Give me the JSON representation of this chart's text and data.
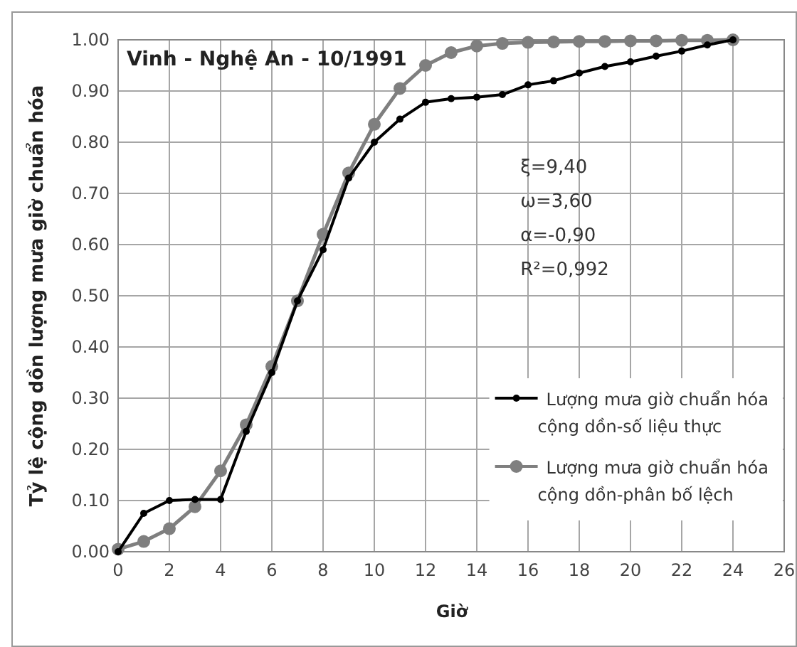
{
  "chart_data": {
    "type": "line",
    "title": "Vinh - Nghệ An - 10/1991",
    "xlabel": "Giờ",
    "ylabel": "Tỷ lệ cộng dồn lượng mưa giờ chuẩn hóa",
    "x": [
      0,
      1,
      2,
      3,
      4,
      5,
      6,
      7,
      8,
      9,
      10,
      11,
      12,
      13,
      14,
      15,
      16,
      17,
      18,
      19,
      20,
      21,
      22,
      23,
      24
    ],
    "series": [
      {
        "name": "Lượng mưa giờ chuẩn hóa cộng dồn-số liệu thực",
        "color": "#000000",
        "values": [
          0,
          0.075,
          0.1,
          0.102,
          0.102,
          0.235,
          0.35,
          0.49,
          0.59,
          0.73,
          0.8,
          0.845,
          0.878,
          0.885,
          0.888,
          0.893,
          0.912,
          0.92,
          0.935,
          0.948,
          0.957,
          0.968,
          0.978,
          0.99,
          1.0
        ]
      },
      {
        "name": "Lượng mưa giờ chuẩn hóa cộng dồn-phân bố lệch",
        "color": "#7f7f7f",
        "values": [
          0.005,
          0.02,
          0.045,
          0.088,
          0.158,
          0.248,
          0.362,
          0.49,
          0.62,
          0.74,
          0.835,
          0.905,
          0.95,
          0.975,
          0.988,
          0.993,
          0.995,
          0.996,
          0.997,
          0.997,
          0.998,
          0.998,
          0.999,
          0.999,
          1.0
        ]
      }
    ],
    "xlim": [
      0,
      26
    ],
    "xticks": [
      0,
      2,
      4,
      6,
      8,
      10,
      12,
      14,
      16,
      18,
      20,
      22,
      24,
      26
    ],
    "ylim": [
      0,
      1
    ],
    "yticks": [
      {
        "value": 0,
        "label": "0.00"
      },
      {
        "value": 0.1,
        "label": "0.10"
      },
      {
        "value": 0.2,
        "label": "0.20"
      },
      {
        "value": 0.3,
        "label": "0.30"
      },
      {
        "value": 0.4,
        "label": "0.40"
      },
      {
        "value": 0.5,
        "label": "0.50"
      },
      {
        "value": 0.6,
        "label": "0.60"
      },
      {
        "value": 0.7,
        "label": "0.70"
      },
      {
        "value": 0.8,
        "label": "0.80"
      },
      {
        "value": 0.9,
        "label": "0.90"
      },
      {
        "value": 1,
        "label": "1.00"
      }
    ],
    "annotations": [
      "ξ=9,40",
      "ω=3,60",
      "α=-0,90",
      "R²=0,992"
    ],
    "grid": true,
    "legend": "right",
    "marker": "circle",
    "line_style": "solid"
  }
}
